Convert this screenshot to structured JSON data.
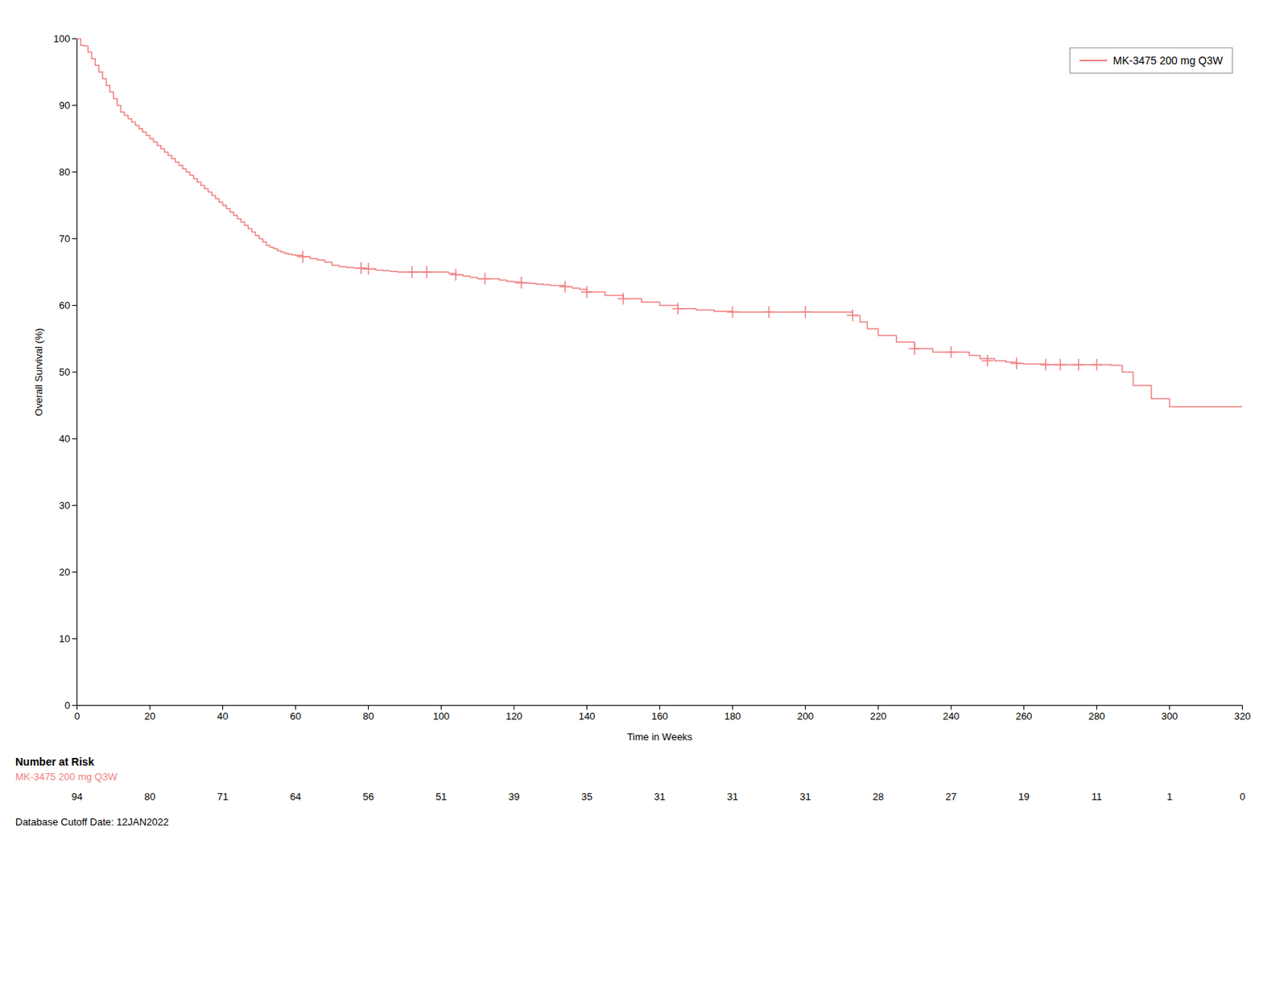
{
  "chart_data": {
    "type": "line",
    "xlabel": "Time in Weeks",
    "ylabel": "Overall Survival (%)",
    "xlim": [
      0,
      320
    ],
    "ylim": [
      0,
      100
    ],
    "xticks": [
      0,
      20,
      40,
      60,
      80,
      100,
      120,
      140,
      160,
      180,
      200,
      220,
      240,
      260,
      280,
      300,
      320
    ],
    "yticks": [
      0,
      10,
      20,
      30,
      40,
      50,
      60,
      70,
      80,
      90,
      100
    ],
    "grid": false,
    "legend": "upper right",
    "series": [
      {
        "name": "MK-3475 200 mg Q3W",
        "type": "line",
        "line_style": "step",
        "color": "#F08080",
        "x": [
          0,
          1,
          2,
          3,
          4,
          5,
          6,
          7,
          8,
          9,
          10,
          11,
          12,
          13,
          14,
          15,
          16,
          17,
          18,
          19,
          20,
          21,
          22,
          23,
          24,
          25,
          26,
          27,
          28,
          29,
          30,
          31,
          32,
          33,
          34,
          35,
          36,
          37,
          38,
          39,
          40,
          41,
          42,
          43,
          44,
          45,
          46,
          47,
          48,
          49,
          50,
          51,
          52,
          53,
          54,
          55,
          56,
          57,
          58,
          59,
          60,
          62,
          64,
          66,
          68,
          70,
          72,
          74,
          76,
          78,
          80,
          82,
          84,
          86,
          88,
          90,
          92,
          94,
          96,
          98,
          100,
          102,
          104,
          106,
          108,
          110,
          112,
          114,
          116,
          118,
          120,
          122,
          124,
          126,
          128,
          130,
          132,
          134,
          136,
          138,
          140,
          145,
          150,
          155,
          160,
          165,
          170,
          175,
          180,
          185,
          190,
          195,
          200,
          205,
          210,
          213,
          215,
          217,
          220,
          225,
          230,
          235,
          238,
          240,
          245,
          248,
          252,
          255,
          258,
          260,
          263,
          266,
          268,
          270,
          273,
          275,
          278,
          280,
          284,
          287,
          290,
          295,
          300,
          305,
          310,
          315,
          320
        ],
        "values": [
          100,
          99.0,
          98.9,
          98.0,
          97.0,
          96.0,
          95.0,
          94.0,
          93.0,
          92.0,
          91.0,
          90.0,
          89.0,
          88.5,
          88.0,
          87.5,
          87.0,
          86.5,
          86.0,
          85.5,
          85.0,
          84.5,
          84.0,
          83.5,
          83.0,
          82.5,
          82.0,
          81.5,
          81.0,
          80.5,
          80.0,
          79.5,
          79.0,
          78.5,
          78.0,
          77.5,
          77.0,
          76.5,
          76.0,
          75.5,
          75.0,
          74.5,
          74.0,
          73.5,
          73.0,
          72.5,
          72.0,
          71.5,
          71.0,
          70.5,
          70.0,
          69.5,
          69.0,
          68.7,
          68.5,
          68.2,
          68.0,
          67.8,
          67.7,
          67.6,
          67.5,
          67.3,
          67.0,
          66.8,
          66.5,
          66.0,
          65.8,
          65.7,
          65.6,
          65.5,
          65.5,
          65.3,
          65.2,
          65.1,
          65.0,
          65.0,
          65.0,
          65.0,
          65.0,
          65.0,
          65.0,
          64.8,
          64.6,
          64.4,
          64.2,
          64.0,
          64.0,
          64.0,
          63.8,
          63.6,
          63.5,
          63.4,
          63.3,
          63.2,
          63.1,
          63.0,
          63.0,
          62.8,
          62.6,
          62.4,
          62.0,
          61.5,
          61.0,
          60.5,
          60.0,
          59.5,
          59.3,
          59.1,
          59.0,
          59.0,
          59.0,
          59.0,
          59.0,
          59.0,
          59.0,
          58.5,
          57.5,
          56.5,
          55.5,
          54.5,
          53.5,
          53.0,
          53.0,
          53.0,
          52.5,
          52.0,
          51.7,
          51.5,
          51.3,
          51.2,
          51.2,
          51.1,
          51.1,
          51.1,
          51.1,
          51.1,
          51.1,
          51.1,
          51.0,
          50.0,
          48.0,
          46.0,
          44.8,
          44.8,
          44.8,
          44.8,
          44.8
        ]
      },
      {
        "type": "scatter",
        "marker": "+",
        "color": "#F08080",
        "x": [
          62,
          78,
          80,
          92,
          96,
          104,
          112,
          122,
          134,
          140,
          150,
          165,
          180,
          190,
          200,
          213,
          230,
          240,
          250,
          258,
          266,
          270,
          275,
          280
        ],
        "values": [
          67.3,
          65.6,
          65.5,
          65.0,
          65.0,
          64.6,
          64.0,
          63.4,
          62.8,
          62.0,
          61.0,
          59.5,
          59.0,
          59.0,
          59.0,
          58.5,
          53.5,
          53.0,
          51.7,
          51.3,
          51.1,
          51.1,
          51.1,
          51.1
        ]
      }
    ],
    "number_at_risk": {
      "title": "Number at Risk",
      "group": "MK-3475 200 mg Q3W",
      "x": [
        0,
        20,
        40,
        60,
        80,
        100,
        120,
        140,
        160,
        180,
        200,
        220,
        240,
        260,
        280,
        300,
        320
      ],
      "counts": [
        94,
        80,
        71,
        64,
        56,
        51,
        39,
        35,
        31,
        31,
        31,
        28,
        27,
        19,
        11,
        1,
        0
      ]
    },
    "annotations": [
      "Database Cutoff Date: 12JAN2022"
    ]
  }
}
